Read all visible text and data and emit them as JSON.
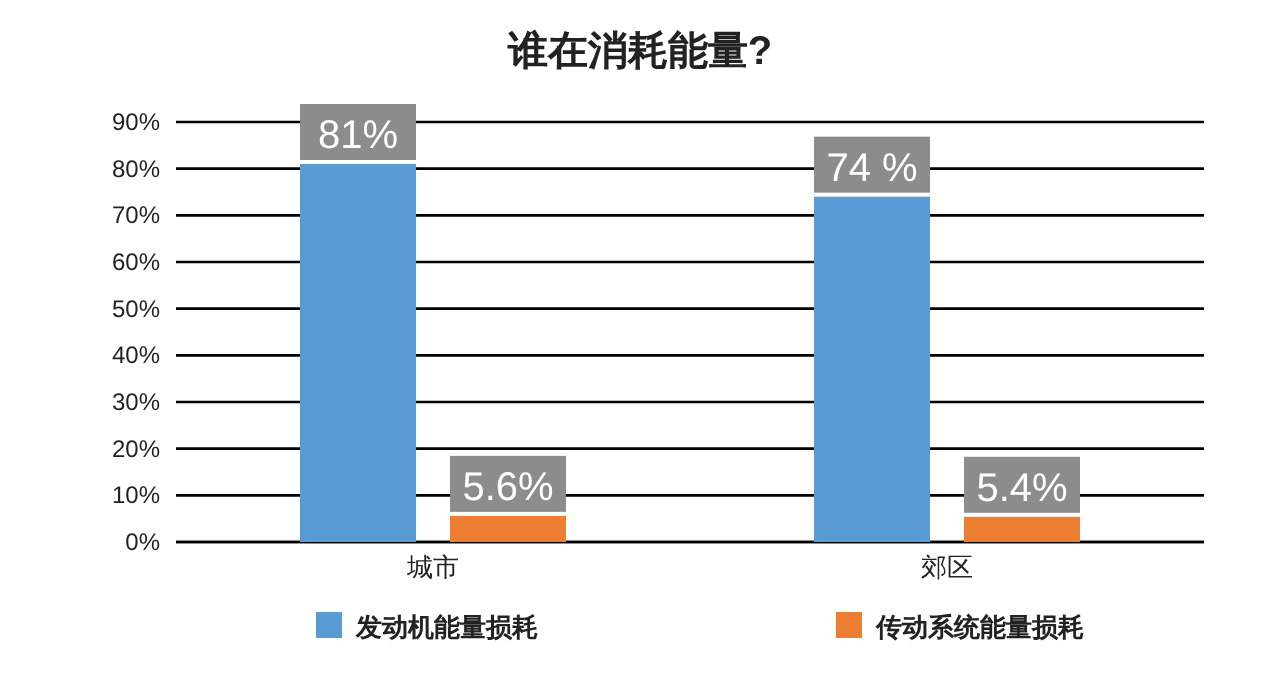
{
  "chart_data": {
    "type": "bar",
    "title": "谁在消耗能量?",
    "categories": [
      "城市",
      "郊区"
    ],
    "series": [
      {
        "name": "发动机能量损耗",
        "color": "#5b9bd5",
        "values": [
          81,
          74
        ],
        "value_labels": [
          "81%",
          "74 %"
        ]
      },
      {
        "name": "传动系统能量损耗",
        "color": "#ed7d31",
        "values": [
          5.6,
          5.4
        ],
        "value_labels": [
          "5.6%",
          "5.4%"
        ]
      }
    ],
    "ylim": [
      0,
      90
    ],
    "yticks": [
      {
        "value": 0,
        "label": "0%"
      },
      {
        "value": 10,
        "label": "10%"
      },
      {
        "value": 20,
        "label": "20%"
      },
      {
        "value": 30,
        "label": "30%"
      },
      {
        "value": 40,
        "label": "40%"
      },
      {
        "value": 50,
        "label": "50%"
      },
      {
        "value": 60,
        "label": "60%"
      },
      {
        "value": 70,
        "label": "70%"
      },
      {
        "value": 80,
        "label": "80%"
      },
      {
        "value": 90,
        "label": "90%"
      }
    ],
    "grid": "y",
    "legend": "bottom"
  }
}
